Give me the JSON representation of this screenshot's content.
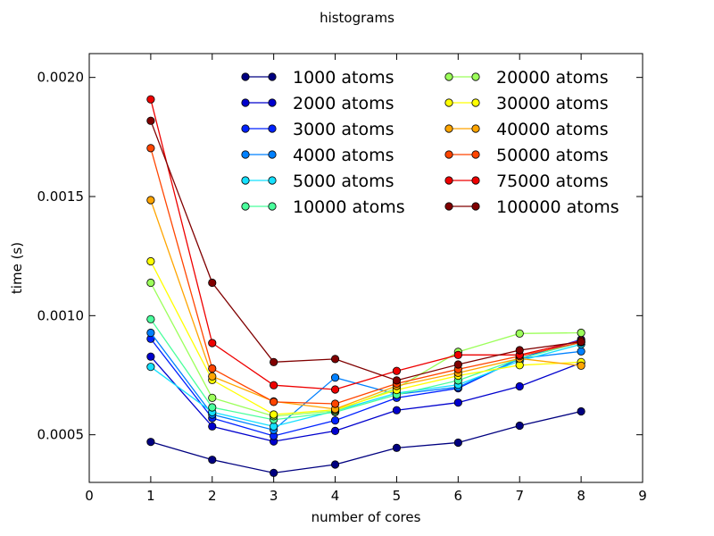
{
  "chart_data": {
    "type": "line",
    "title": "histograms",
    "xlabel": "number of cores",
    "ylabel": "time (s)",
    "xlim": [
      0,
      9
    ],
    "ylim": [
      0.0003,
      0.0021
    ],
    "xticks": [
      0,
      1,
      2,
      3,
      4,
      5,
      6,
      7,
      8,
      9
    ],
    "xtick_labels": [
      "0",
      "1",
      "2",
      "3",
      "4",
      "5",
      "6",
      "7",
      "8",
      "9"
    ],
    "yticks": [
      0.0005,
      0.001,
      0.0015,
      0.002
    ],
    "ytick_labels": [
      "0.0005",
      "0.0010",
      "0.0015",
      "0.0020"
    ],
    "grid": false,
    "legend": {
      "placement": "top-right",
      "columns": 2
    },
    "x": [
      1,
      2,
      3,
      4,
      5,
      6,
      7,
      8
    ],
    "series": [
      {
        "name": "1000 atoms",
        "color": "#000080",
        "values": [
          0.00047,
          0.000395,
          0.00034,
          0.000375,
          0.000445,
          0.000467,
          0.000538,
          0.000598
        ]
      },
      {
        "name": "2000 atoms",
        "color": "#0000cd",
        "values": [
          0.000828,
          0.000535,
          0.000472,
          0.000516,
          0.000603,
          0.000635,
          0.000703,
          0.000802
        ]
      },
      {
        "name": "3000 atoms",
        "color": "#0022ff",
        "values": [
          0.000903,
          0.00057,
          0.000495,
          0.00056,
          0.000655,
          0.000695,
          0.00082,
          0.0009
        ]
      },
      {
        "name": "4000 atoms",
        "color": "#0080ff",
        "values": [
          0.000928,
          0.000585,
          0.00052,
          0.00074,
          0.00067,
          0.0007,
          0.00082,
          0.00085
        ]
      },
      {
        "name": "5000 atoms",
        "color": "#15e0ff",
        "values": [
          0.000785,
          0.000595,
          0.000535,
          0.0006,
          0.000675,
          0.00071,
          0.00081,
          0.00088
        ]
      },
      {
        "name": "10000 atoms",
        "color": "#49ff9c",
        "values": [
          0.000985,
          0.000615,
          0.000563,
          0.000595,
          0.000668,
          0.000728,
          0.00082,
          0.000888
        ]
      },
      {
        "name": "20000 atoms",
        "color": "#9cff5a",
        "values": [
          0.001138,
          0.000655,
          0.000578,
          0.0006,
          0.000695,
          0.000848,
          0.000925,
          0.000928
        ]
      },
      {
        "name": "30000 atoms",
        "color": "#ffff00",
        "values": [
          0.001228,
          0.00073,
          0.000585,
          0.000605,
          0.000688,
          0.000748,
          0.000792,
          0.000805
        ]
      },
      {
        "name": "40000 atoms",
        "color": "#ffa500",
        "values": [
          0.001485,
          0.000745,
          0.00064,
          0.000608,
          0.000705,
          0.00076,
          0.00082,
          0.00079
        ]
      },
      {
        "name": "50000 atoms",
        "color": "#ff4500",
        "values": [
          0.001703,
          0.000778,
          0.000638,
          0.00063,
          0.000715,
          0.000775,
          0.00083,
          0.000888
        ]
      },
      {
        "name": "75000 atoms",
        "color": "#ee0000",
        "values": [
          0.001908,
          0.000885,
          0.000708,
          0.00069,
          0.000768,
          0.000835,
          0.000835,
          0.000895
        ]
      },
      {
        "name": "100000 atoms",
        "color": "#800000",
        "values": [
          0.001818,
          0.001138,
          0.000805,
          0.000818,
          0.000728,
          0.000795,
          0.000855,
          0.00089
        ]
      }
    ]
  }
}
